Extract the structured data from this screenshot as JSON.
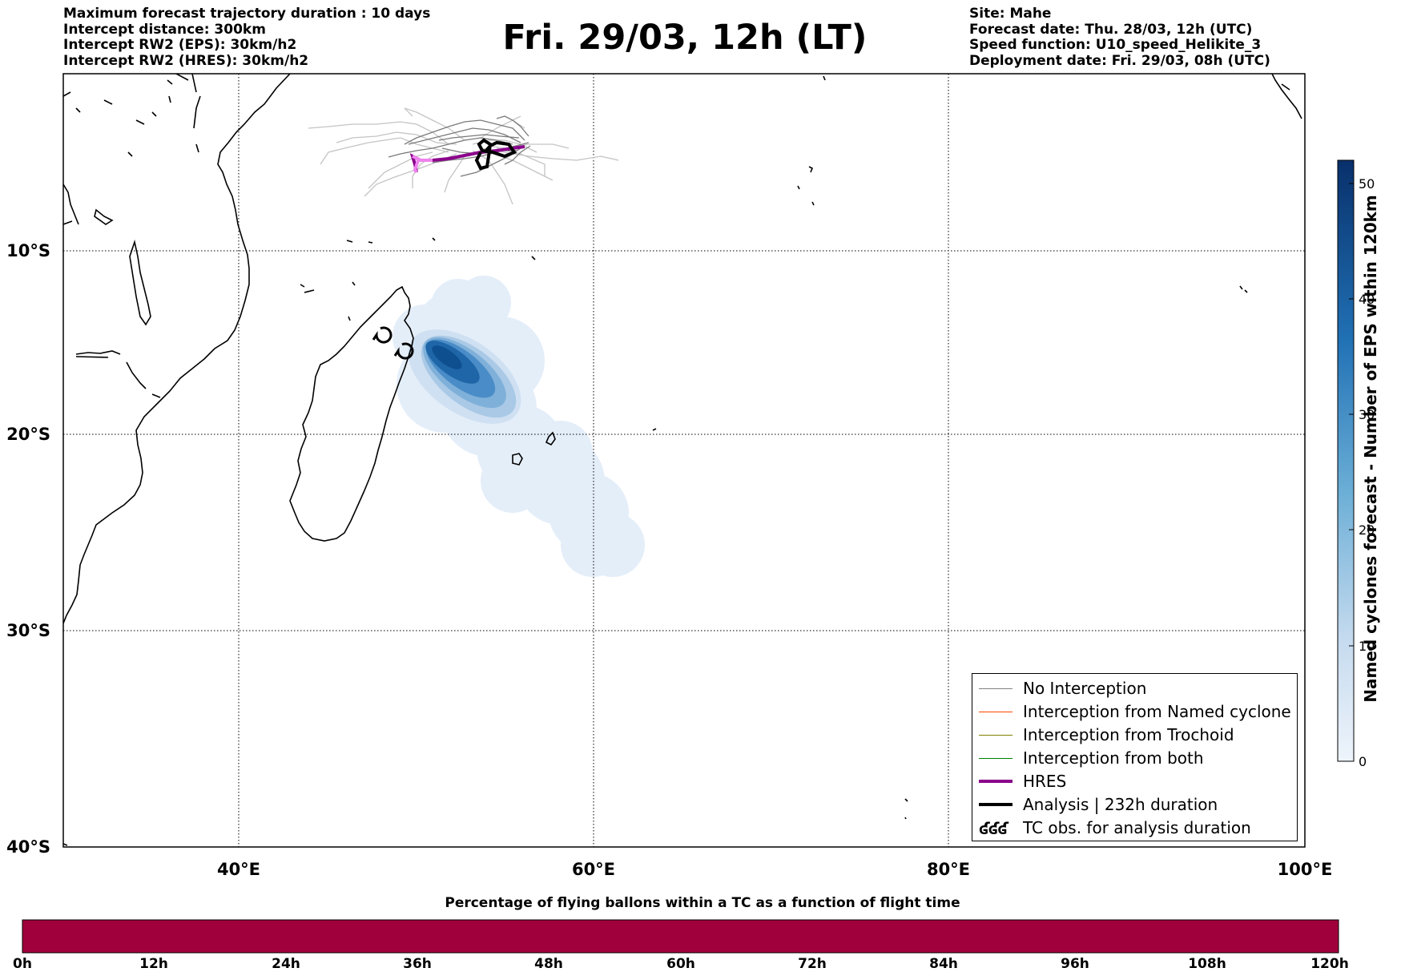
{
  "header_left": [
    "Maximum forecast trajectory duration : 10 days",
    "Intercept distance: 300km",
    "Intercept RW2 (EPS):  30km/h2",
    "Intercept RW2 (HRES): 30km/h2"
  ],
  "title": "Fri. 29/03, 12h (LT)",
  "header_right": [
    "Site: Mahe",
    "Forecast date: Thu. 28/03, 12h (UTC)",
    "Speed function: U10_speed_Helikite_3",
    "Deployment date: Fri. 29/03, 08h (UTC)"
  ],
  "map": {
    "lon_ticks": [
      "40°E",
      "60°E",
      "80°E",
      "100°E"
    ],
    "lat_ticks": [
      "10°S",
      "20°S",
      "30°S",
      "40°S"
    ],
    "lon_range": [
      30,
      100
    ],
    "lat_range": [
      -40,
      -1
    ]
  },
  "legend": {
    "items": [
      {
        "label": "No Interception",
        "color": "#808080",
        "kind": "line"
      },
      {
        "label": "Interception from Named cyclone",
        "color": "#ff4500",
        "kind": "line"
      },
      {
        "label": "Interception from Trochoid",
        "color": "#808000",
        "kind": "line"
      },
      {
        "label": "Interception from both",
        "color": "#008000",
        "kind": "line"
      },
      {
        "label": "HRES",
        "color": "#8b008b",
        "kind": "thick"
      },
      {
        "label": "Analysis | 232h duration",
        "color": "#000000",
        "kind": "thick"
      },
      {
        "label": "TC obs. for analysis duration",
        "color": "#000000",
        "kind": "symbol"
      }
    ]
  },
  "colorbar": {
    "title": "Named cyclones forecast - Number of EPS within 120km",
    "ticks": [
      "0",
      "10",
      "20",
      "30",
      "40",
      "50"
    ],
    "range": [
      0,
      52
    ],
    "color_low": "#e8f0fa",
    "color_high": "#0a3a70"
  },
  "bottom_bar": {
    "title": "Percentage of flying ballons within a TC as a function of flight time",
    "ticks": [
      "0h",
      "12h",
      "24h",
      "36h",
      "48h",
      "60h",
      "72h",
      "84h",
      "96h",
      "108h",
      "120h"
    ],
    "color": "#a0003c"
  },
  "chart_data": {
    "type": "heatmap",
    "title": "Fri. 29/03, 12h (LT)",
    "xlabel": "",
    "ylabel": "",
    "xlim": [
      30,
      100
    ],
    "ylim": [
      -40,
      -1
    ],
    "hres_track": [
      [
        56.1,
        -4.6
      ],
      [
        54.5,
        -4.9
      ],
      [
        53.0,
        -5.3
      ],
      [
        51.5,
        -5.8
      ],
      [
        50.5,
        -5.9
      ],
      [
        49.8,
        -5.5
      ],
      [
        50.1,
        -6.5
      ]
    ],
    "analysis_track": [
      [
        53.6,
        -4.9
      ],
      [
        54.2,
        -4.2
      ],
      [
        55.5,
        -4.5
      ],
      [
        56.0,
        -4.8
      ],
      [
        54.8,
        -5.0
      ],
      [
        54.1,
        -5.4
      ],
      [
        54.6,
        -6.0
      ],
      [
        54.0,
        -6.3
      ],
      [
        53.8,
        -5.3
      ]
    ],
    "density_peak": {
      "lon": 52.0,
      "lat": -16.5,
      "value": 50
    }
  }
}
